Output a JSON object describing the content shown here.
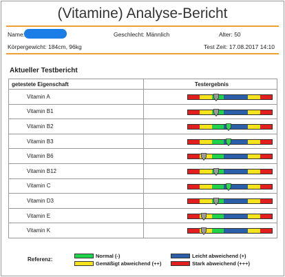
{
  "header": {
    "title": "(Vitamine) Analyse-Bericht",
    "name_label": "Name:",
    "gender": "Geschlecht: Männlich",
    "age": "Alter: 50",
    "body": "Körpergewicht: 184cm, 96kg",
    "test_time": "Test Zeit: 17.08.2017 14:10"
  },
  "section_title": "Aktueller Testbericht",
  "table": {
    "col_property": "getestete Eigenschaft",
    "col_result": "Testergebnis",
    "scale_colors": [
      "#e31e1e",
      "#f6e31c",
      "#1fd34a",
      "#2b5faa",
      "#2b5faa",
      "#f6e31c",
      "#e31e1e"
    ],
    "rows": [
      {
        "name": "Vitamin A",
        "level": 0.34,
        "marker": "gray"
      },
      {
        "name": "Vitamin B1",
        "level": 0.34,
        "marker": "gray"
      },
      {
        "name": "Vitamin B2",
        "level": 0.48,
        "marker": "green"
      },
      {
        "name": "Vitamin B3",
        "level": 0.48,
        "marker": "green"
      },
      {
        "name": "Vitamin B6",
        "level": 0.19,
        "marker": "gray"
      },
      {
        "name": "Vitamin B12",
        "level": 0.34,
        "marker": "gray"
      },
      {
        "name": "Vitamin C",
        "level": 0.48,
        "marker": "green"
      },
      {
        "name": "Vitamin D3",
        "level": 0.34,
        "marker": "gray"
      },
      {
        "name": "Vitamin E",
        "level": 0.19,
        "marker": "gray"
      },
      {
        "name": "Vitamin K",
        "level": 0.19,
        "marker": "gray"
      }
    ]
  },
  "legend": {
    "label": "Referenz:",
    "items": [
      {
        "text": "Normal (-)",
        "color": "#1fd34a"
      },
      {
        "text": "Leicht abweichend (+)",
        "color": "#2b5faa"
      },
      {
        "text": "Gemäßigt abweichend (++)",
        "color": "#f6e31c"
      },
      {
        "text": "Stark abweichend (+++)",
        "color": "#e31e1e"
      }
    ]
  },
  "marker_colors": {
    "gray": "#9a9a9a",
    "green": "#2fd64e"
  }
}
